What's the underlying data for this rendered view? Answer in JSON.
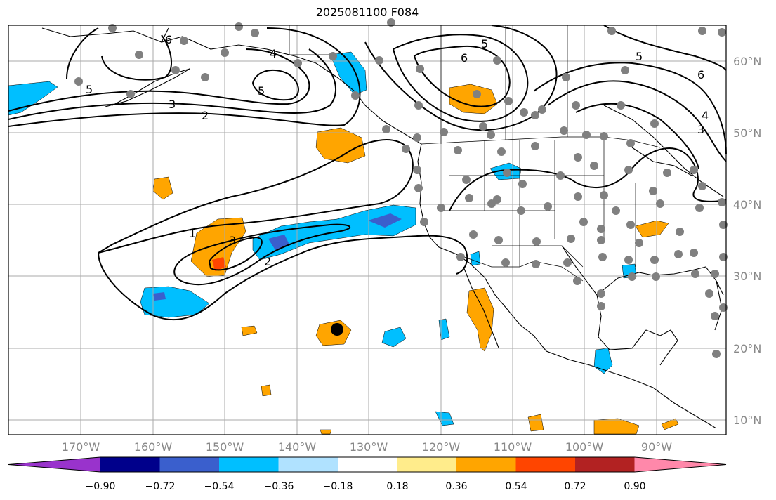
{
  "title": "2025081100 F084",
  "longitude_ticks": [
    "170°W",
    "160°W",
    "150°W",
    "140°W",
    "130°W",
    "120°W",
    "110°W",
    "100°W",
    "90°W"
  ],
  "latitude_ticks": [
    "60°N",
    "50°N",
    "40°N",
    "30°N",
    "20°N",
    "10°N"
  ],
  "contour_labels": [
    "6",
    "5",
    "4",
    "5",
    "3",
    "2",
    "5",
    "6",
    "5",
    "6",
    "4",
    "3",
    "1",
    "3",
    "2"
  ],
  "colorbar": {
    "colors": [
      "#9933cc",
      "#00008b",
      "#3a5fcd",
      "#00bfff",
      "#b0e2ff",
      "#ffffff",
      "#ffec8b",
      "#ffa500",
      "#ff4500",
      "#b22222",
      "#ff88aa"
    ],
    "tick_labels": [
      "−0.90",
      "−0.72",
      "−0.54",
      "−0.36",
      "−0.18",
      "0.18",
      "0.36",
      "0.54",
      "0.72",
      "0.90"
    ]
  },
  "colors": {
    "positive": "#ffa500",
    "strong_positive": "#ff4500",
    "negative": "#00bfff",
    "strong_negative": "#3a5fcd",
    "station": "#808080",
    "grid": "#aaaaaa"
  }
}
